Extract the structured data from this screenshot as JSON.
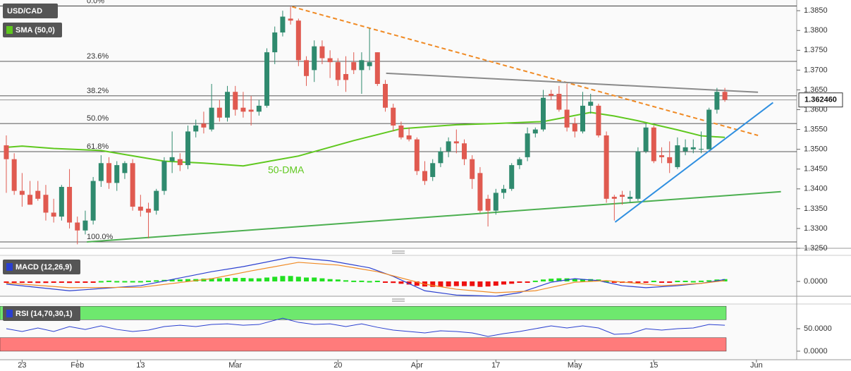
{
  "chart_data": [
    {
      "type": "candlestick",
      "title": "USD/CAD",
      "xlim": [
        -0.8,
        100.1
      ],
      "ylim": [
        1.325,
        1.3877
      ],
      "yticks": [
        {
          "value": 1.325,
          "label": "1.3250"
        },
        {
          "value": 1.33,
          "label": "1.3300"
        },
        {
          "value": 1.335,
          "label": "1.3350"
        },
        {
          "value": 1.34,
          "label": "1.3400"
        },
        {
          "value": 1.345,
          "label": "1.3450"
        },
        {
          "value": 1.35,
          "label": "1.3500"
        },
        {
          "value": 1.355,
          "label": "1.3550"
        },
        {
          "value": 1.36,
          "label": "1.3600"
        },
        {
          "value": 1.365,
          "label": "1.3650"
        },
        {
          "value": 1.37,
          "label": "1.3700"
        },
        {
          "value": 1.375,
          "label": "1.3750"
        },
        {
          "value": 1.38,
          "label": "1.3800"
        },
        {
          "value": 1.385,
          "label": "1.3850"
        }
      ],
      "xticks": [
        {
          "value": 2,
          "label": "23"
        },
        {
          "value": 9,
          "label": "Feb"
        },
        {
          "value": 17,
          "label": "13"
        },
        {
          "value": 29,
          "label": "Mar"
        },
        {
          "value": 42,
          "label": "20"
        },
        {
          "value": 52,
          "label": "Apr"
        },
        {
          "value": 62,
          "label": "17"
        },
        {
          "value": 72,
          "label": "May"
        },
        {
          "value": 82,
          "label": "15"
        },
        {
          "value": 95,
          "label": "Jun"
        }
      ],
      "up_color": "#2f8a6e",
      "down_color": "#e05a50",
      "candles": [
        [
          1.351,
          1.3535,
          1.339,
          1.3475
        ],
        [
          1.3475,
          1.349,
          1.3385,
          1.3395
        ],
        [
          1.3395,
          1.344,
          1.3355,
          1.3385
        ],
        [
          1.3385,
          1.342,
          1.336,
          1.336
        ],
        [
          1.3395,
          1.342,
          1.337,
          1.3375
        ],
        [
          1.3385,
          1.341,
          1.332,
          1.334
        ],
        [
          1.334,
          1.3375,
          1.3315,
          1.333
        ],
        [
          1.333,
          1.341,
          1.332,
          1.3405
        ],
        [
          1.3405,
          1.345,
          1.33,
          1.3315
        ],
        [
          1.3315,
          1.333,
          1.326,
          1.3295
        ],
        [
          1.3295,
          1.3345,
          1.3285,
          1.332
        ],
        [
          1.332,
          1.343,
          1.331,
          1.342
        ],
        [
          1.342,
          1.3485,
          1.3405,
          1.3465
        ],
        [
          1.3465,
          1.348,
          1.34,
          1.3415
        ],
        [
          1.3415,
          1.347,
          1.3395,
          1.346
        ],
        [
          1.344,
          1.347,
          1.3425,
          1.3465
        ],
        [
          1.3465,
          1.3475,
          1.3345,
          1.3355
        ],
        [
          1.3355,
          1.3385,
          1.333,
          1.3345
        ],
        [
          1.335,
          1.3365,
          1.3275,
          1.334
        ],
        [
          1.3345,
          1.34,
          1.3335,
          1.3395
        ],
        [
          1.3395,
          1.348,
          1.3385,
          1.347
        ],
        [
          1.347,
          1.3545,
          1.344,
          1.348
        ],
        [
          1.3475,
          1.349,
          1.3445,
          1.346
        ],
        [
          1.346,
          1.356,
          1.345,
          1.3545
        ],
        [
          1.3545,
          1.3575,
          1.353,
          1.356
        ],
        [
          1.3565,
          1.3595,
          1.354,
          1.3555
        ],
        [
          1.355,
          1.3665,
          1.3545,
          1.3605
        ],
        [
          1.3605,
          1.3625,
          1.357,
          1.358
        ],
        [
          1.358,
          1.366,
          1.357,
          1.3645
        ],
        [
          1.3645,
          1.366,
          1.3585,
          1.36
        ],
        [
          1.3605,
          1.3645,
          1.358,
          1.3595
        ],
        [
          1.36,
          1.3635,
          1.356,
          1.3595
        ],
        [
          1.3595,
          1.3625,
          1.3585,
          1.361
        ],
        [
          1.361,
          1.3755,
          1.3605,
          1.3745
        ],
        [
          1.3745,
          1.381,
          1.3715,
          1.3795
        ],
        [
          1.3795,
          1.385,
          1.3785,
          1.3835
        ],
        [
          1.383,
          1.386,
          1.3815,
          1.3825
        ],
        [
          1.3825,
          1.383,
          1.371,
          1.3725
        ],
        [
          1.3725,
          1.3735,
          1.366,
          1.3685
        ],
        [
          1.37,
          1.3775,
          1.367,
          1.376
        ],
        [
          1.376,
          1.3775,
          1.3715,
          1.373
        ],
        [
          1.373,
          1.375,
          1.368,
          1.372
        ],
        [
          1.372,
          1.373,
          1.366,
          1.3675
        ],
        [
          1.369,
          1.3735,
          1.3645,
          1.3675
        ],
        [
          1.372,
          1.3745,
          1.369,
          1.37
        ],
        [
          1.37,
          1.3745,
          1.364,
          1.3725
        ],
        [
          1.371,
          1.3805,
          1.37,
          1.372
        ],
        [
          1.3745,
          1.3745,
          1.366,
          1.3665
        ],
        [
          1.3665,
          1.3675,
          1.3595,
          1.3605
        ],
        [
          1.3605,
          1.3615,
          1.3545,
          1.356
        ],
        [
          1.356,
          1.357,
          1.3525,
          1.353
        ],
        [
          1.3535,
          1.3555,
          1.352,
          1.3525
        ],
        [
          1.3525,
          1.353,
          1.3435,
          1.3445
        ],
        [
          1.3445,
          1.347,
          1.341,
          1.342
        ],
        [
          1.343,
          1.3475,
          1.342,
          1.3465
        ],
        [
          1.3465,
          1.3505,
          1.3455,
          1.3495
        ],
        [
          1.3495,
          1.353,
          1.348,
          1.352
        ],
        [
          1.352,
          1.355,
          1.349,
          1.3515
        ],
        [
          1.3515,
          1.3525,
          1.346,
          1.3475
        ],
        [
          1.3475,
          1.3485,
          1.34,
          1.3425
        ],
        [
          1.344,
          1.3455,
          1.334,
          1.3345
        ],
        [
          1.3375,
          1.3385,
          1.3305,
          1.3345
        ],
        [
          1.3345,
          1.34,
          1.3335,
          1.339
        ],
        [
          1.339,
          1.341,
          1.3375,
          1.34
        ],
        [
          1.34,
          1.3465,
          1.3395,
          1.346
        ],
        [
          1.346,
          1.348,
          1.345,
          1.3475
        ],
        [
          1.348,
          1.3555,
          1.347,
          1.354
        ],
        [
          1.354,
          1.3555,
          1.353,
          1.355
        ],
        [
          1.355,
          1.365,
          1.3545,
          1.363
        ],
        [
          1.364,
          1.365,
          1.3625,
          1.3635
        ],
        [
          1.364,
          1.366,
          1.3595,
          1.36
        ],
        [
          1.36,
          1.3665,
          1.3545,
          1.3555
        ],
        [
          1.3565,
          1.358,
          1.353,
          1.3545
        ],
        [
          1.3545,
          1.3645,
          1.354,
          1.361
        ],
        [
          1.361,
          1.364,
          1.359,
          1.362
        ],
        [
          1.361,
          1.3615,
          1.353,
          1.3535
        ],
        [
          1.3535,
          1.3545,
          1.3365,
          1.3375
        ],
        [
          1.338,
          1.3385,
          1.332,
          1.3375
        ],
        [
          1.3385,
          1.3395,
          1.336,
          1.338
        ],
        [
          1.3375,
          1.3395,
          1.3365,
          1.338
        ],
        [
          1.3375,
          1.3505,
          1.337,
          1.3495
        ],
        [
          1.3495,
          1.3565,
          1.349,
          1.3555
        ],
        [
          1.3555,
          1.356,
          1.3465,
          1.347
        ],
        [
          1.3485,
          1.3505,
          1.3465,
          1.348
        ],
        [
          1.348,
          1.352,
          1.344,
          1.3465
        ],
        [
          1.3455,
          1.353,
          1.345,
          1.351
        ],
        [
          1.3495,
          1.3525,
          1.3485,
          1.3505
        ],
        [
          1.35,
          1.3525,
          1.349,
          1.3505
        ],
        [
          1.35,
          1.3545,
          1.349,
          1.3501
        ],
        [
          1.35,
          1.3605,
          1.35,
          1.36
        ],
        [
          1.36,
          1.3655,
          1.359,
          1.3645
        ],
        [
          1.3645,
          1.3655,
          1.362,
          1.3625
        ]
      ],
      "current_price": {
        "value": 1.36246,
        "label": "1.362460"
      },
      "sma": {
        "name": "SMA (50,0)",
        "annotation": "50-DMA",
        "color": "#5fc81e",
        "x": [
          0,
          2,
          6,
          12,
          20,
          25,
          30,
          37,
          44,
          50,
          57,
          62,
          68,
          74,
          77,
          80,
          85,
          88,
          91
        ],
        "values": [
          1.3505,
          1.3508,
          1.3502,
          1.3497,
          1.347,
          1.3465,
          1.3458,
          1.3483,
          1.3522,
          1.3552,
          1.3562,
          1.3565,
          1.357,
          1.3593,
          1.3584,
          1.3572,
          1.3549,
          1.3534,
          1.353
        ]
      },
      "fib_levels": [
        {
          "label": "0.0%",
          "value": 1.3862
        },
        {
          "label": "23.6%",
          "value": 1.3722
        },
        {
          "label": "38.2%",
          "value": 1.3635
        },
        {
          "label": "50.0%",
          "value": 1.3565
        },
        {
          "label": "61.8%",
          "value": 1.3494
        },
        {
          "label": "100.0%",
          "value": 1.3266
        }
      ],
      "trendlines": [
        {
          "color": "#f08a24",
          "dash": true,
          "x": [
            36.2,
            95.2
          ],
          "values": [
            1.386,
            1.3535
          ]
        },
        {
          "color": "#8a8a8a",
          "dash": false,
          "x": [
            48.1,
            95.2
          ],
          "values": [
            1.3692,
            1.3644
          ]
        },
        {
          "color": "#4caf50",
          "dash": false,
          "x": [
            10.2,
            98.1
          ],
          "values": [
            1.3266,
            1.3393
          ]
        },
        {
          "color": "#2f8fe0",
          "dash": false,
          "x": [
            77.1,
            97.1
          ],
          "values": [
            1.3316,
            1.3618
          ]
        }
      ]
    },
    {
      "type": "macd",
      "name": "MACD (12,26,9)",
      "ylim": [
        -0.0038,
        0.0067
      ],
      "yticks": [
        {
          "value": 0,
          "label": "0.0000"
        }
      ],
      "macd": {
        "color": "#2a3fd0",
        "x": [
          0,
          8,
          17,
          26,
          30,
          36,
          41,
          46,
          49,
          53,
          57,
          62,
          65,
          69,
          72,
          75,
          78,
          81,
          85,
          88,
          91
        ],
        "values": [
          -0.0007,
          -0.0024,
          -0.0011,
          0.0025,
          0.0038,
          0.0062,
          0.0053,
          0.0035,
          0.0013,
          -0.0024,
          -0.0035,
          -0.0038,
          -0.0029,
          -0.0002,
          0.0007,
          0.0002,
          -0.0011,
          -0.0016,
          -0.0011,
          -0.0005,
          0.0005
        ]
      },
      "signal": {
        "color": "#f08a24",
        "x": [
          0,
          8,
          17,
          26,
          31,
          37,
          42,
          47,
          53,
          57,
          62,
          67,
          72,
          76,
          80,
          83,
          88,
          91
        ],
        "values": [
          -0.0004,
          -0.0016,
          -0.0015,
          0.0007,
          0.0027,
          0.0049,
          0.0042,
          0.0025,
          -0.0007,
          -0.002,
          -0.0029,
          -0.0024,
          -0.0002,
          0.0002,
          -0.0005,
          -0.0011,
          -0.0005,
          0.0002
        ]
      },
      "histogram": {
        "up_color": "#22e022",
        "down_color": "#ee1111",
        "values": [
          -0.0002,
          -0.0003,
          -0.0003,
          -0.0003,
          -0.0004,
          -0.0004,
          -0.0003,
          -0.0003,
          -0.0004,
          -0.0003,
          -0.0002,
          -0.0001,
          0.0001,
          0.0002,
          0.0001,
          0.0001,
          0.0001,
          0.0001,
          0.0002,
          0.0003,
          0.0004,
          0.0005,
          0.0005,
          0.0006,
          0.0006,
          0.0007,
          0.0008,
          0.0008,
          0.0009,
          0.0009,
          0.0009,
          0.0008,
          0.0008,
          0.001,
          0.0012,
          0.0014,
          0.0014,
          0.0012,
          0.001,
          0.001,
          0.0008,
          0.0006,
          0.0005,
          0.0003,
          0.0002,
          0.0002,
          0.0001,
          0,
          -0.0002,
          -0.0004,
          -0.0006,
          -0.0008,
          -0.0011,
          -0.0013,
          -0.0014,
          -0.0014,
          -0.0013,
          -0.0012,
          -0.0012,
          -0.0012,
          -0.0014,
          -0.0013,
          -0.0011,
          -0.0008,
          -0.0006,
          -0.0003,
          -0.0001,
          0.0002,
          0.0005,
          0.0007,
          0.0008,
          0.0008,
          0.0007,
          0.0006,
          0.0006,
          0.0005,
          0.0001,
          -0.0002,
          -0.0003,
          -0.0003,
          -0.0002,
          -0.0001,
          0,
          -0.0001,
          -0.0001,
          0,
          0,
          0.0001,
          0.0002,
          0.0003,
          0.0005,
          0.0006
        ]
      }
    },
    {
      "type": "rsi",
      "name": "RSI (14,70,30,1)",
      "ylim": [
        -19,
        105
      ],
      "yticks": [
        {
          "value": 0,
          "label": "0.0000"
        },
        {
          "value": 50,
          "label": "50.0000"
        }
      ],
      "bands": [
        {
          "from": 70,
          "to": 100,
          "color": "#6ee86e"
        },
        {
          "from": 0,
          "to": 30,
          "color": "#ff7b7b"
        }
      ],
      "rsi": {
        "color": "#2a3fd0",
        "x": [
          0,
          2,
          4,
          6,
          8,
          10,
          12,
          14,
          16,
          18,
          20,
          22,
          24,
          26,
          28,
          30,
          32,
          34,
          35,
          37,
          39,
          41,
          43,
          45,
          47,
          49,
          51,
          53,
          55,
          57,
          59,
          61,
          63,
          65,
          67,
          69,
          71,
          73,
          75,
          77,
          79,
          81,
          83,
          85,
          87,
          89,
          91
        ],
        "values": [
          50,
          43.8,
          51.6,
          43.8,
          54.7,
          48.4,
          56.3,
          48.4,
          43.8,
          46.9,
          54.7,
          57.8,
          54.7,
          59.4,
          60.9,
          57.8,
          59.4,
          68.8,
          73.4,
          64.1,
          59.4,
          60.9,
          54.7,
          60.9,
          53.1,
          46.9,
          43.8,
          40.6,
          45.3,
          43.8,
          40.6,
          32.8,
          39.1,
          43.8,
          50,
          56.3,
          51.6,
          56.3,
          51.6,
          37.5,
          39.1,
          50,
          46.9,
          50,
          51.6,
          59.4,
          57.8
        ]
      }
    }
  ]
}
